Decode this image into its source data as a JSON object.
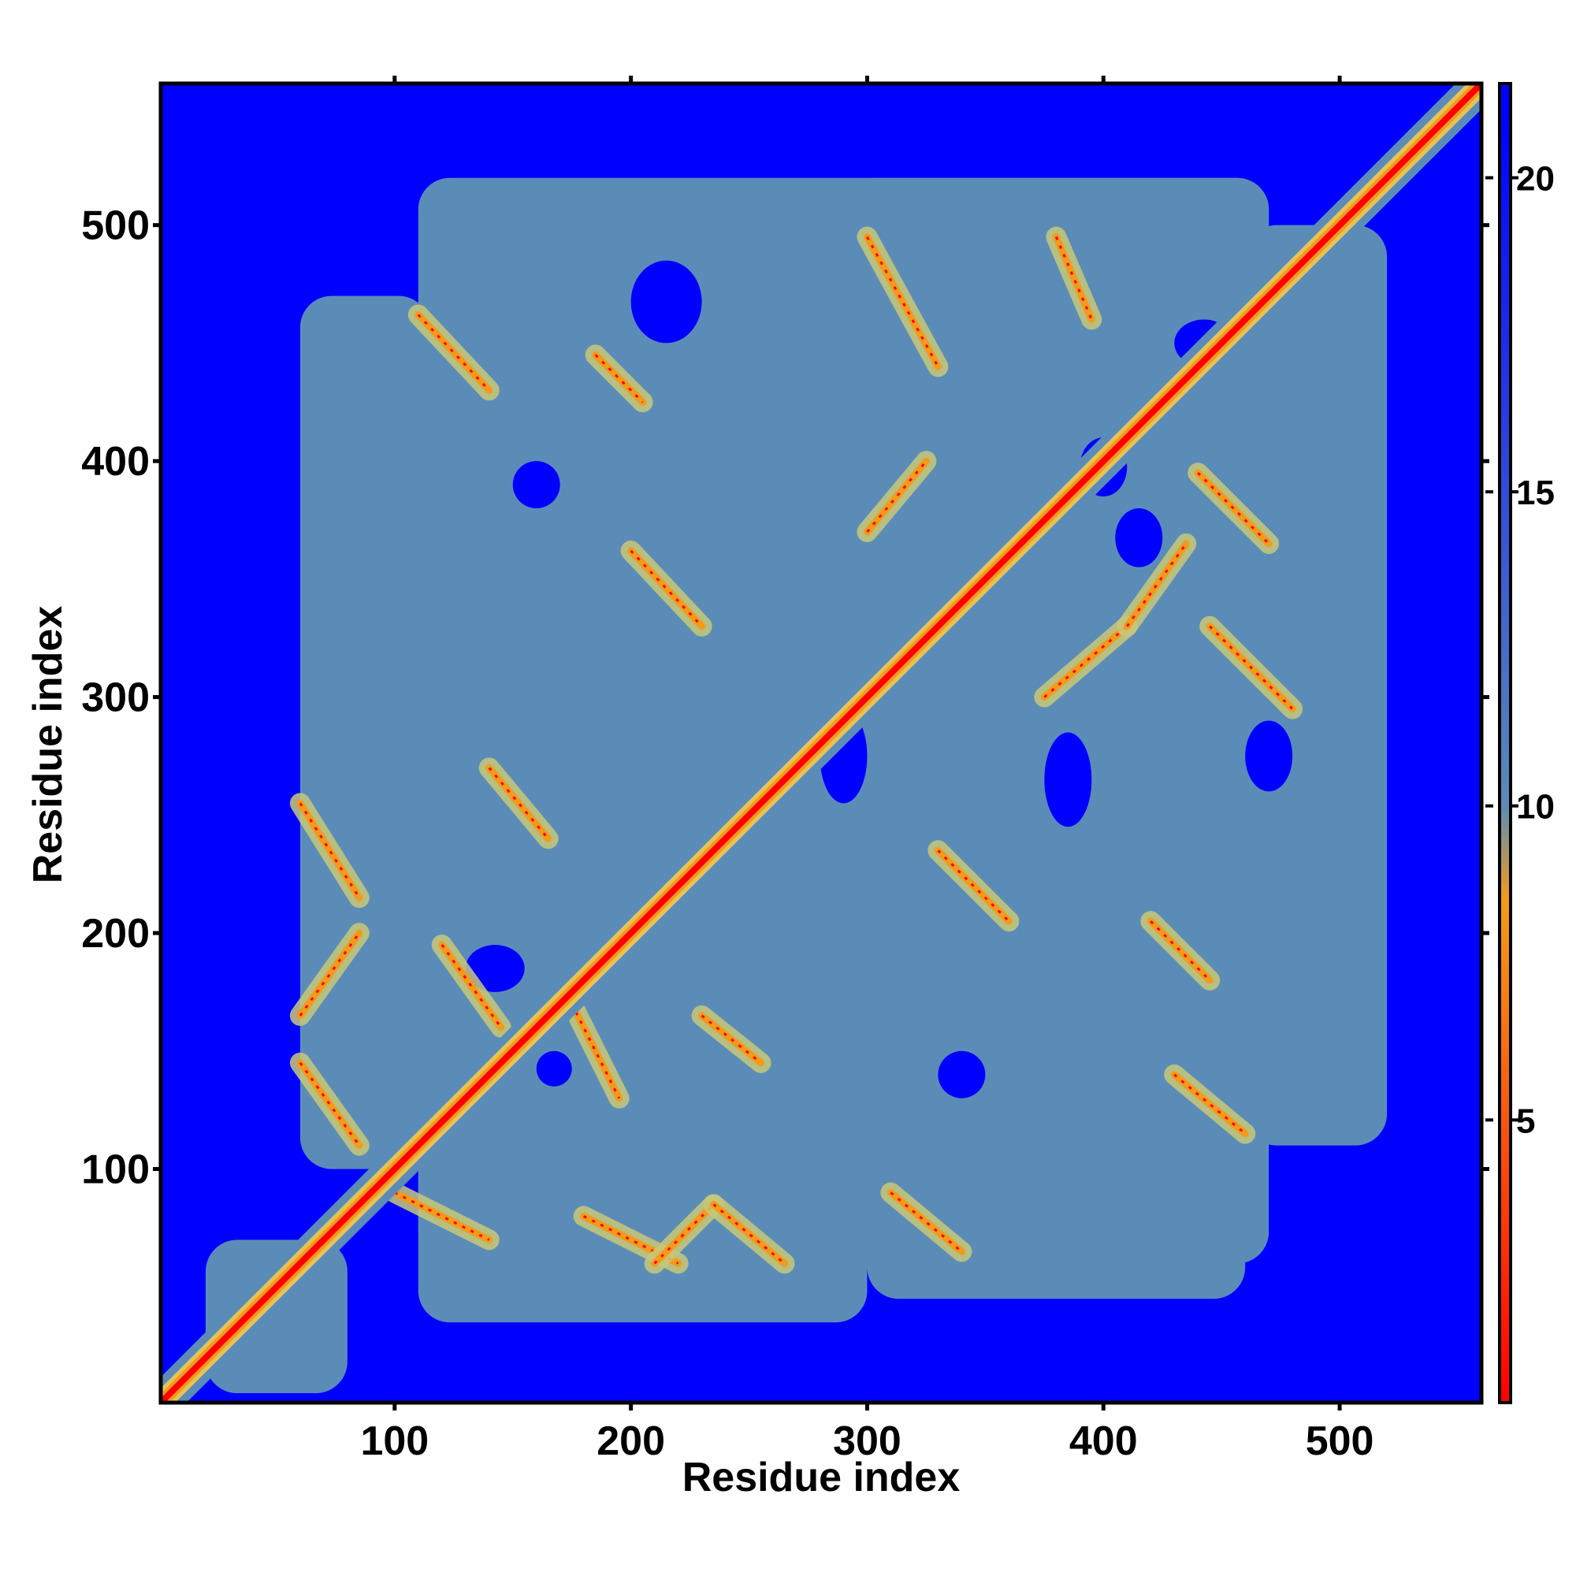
{
  "chart_data": {
    "type": "heatmap",
    "title": "",
    "xlabel": "Residue index",
    "ylabel": "Residue index",
    "xlim": [
      1,
      560
    ],
    "ylim": [
      1,
      560
    ],
    "x_ticks": [
      100,
      200,
      300,
      400,
      500
    ],
    "y_ticks": [
      100,
      200,
      300,
      400,
      500
    ],
    "colorbar": {
      "range": [
        0.5,
        21.5
      ],
      "ticks": [
        5,
        10,
        15,
        20
      ],
      "colors": [
        "#ff0000",
        "#f29b1b",
        "#5b8cb8",
        "#0000ff"
      ],
      "stops": [
        0.5,
        8.5,
        10,
        21
      ]
    },
    "background_color": "#0000ff",
    "contact_color": "#5b8cb8",
    "diagonal_color": "#ff0000",
    "diagonal_band": {
      "from": 1,
      "to": 560
    },
    "contact_bands": [
      {
        "type": "antiparallel",
        "i": [
          110,
          140
        ],
        "j": [
          430,
          462
        ]
      },
      {
        "type": "antiparallel",
        "i": [
          185,
          205
        ],
        "j": [
          425,
          445
        ]
      },
      {
        "type": "antiparallel",
        "i": [
          200,
          230
        ],
        "j": [
          330,
          362
        ]
      },
      {
        "type": "antiparallel",
        "i": [
          300,
          330
        ],
        "j": [
          440,
          495
        ]
      },
      {
        "type": "parallel",
        "i": [
          300,
          325
        ],
        "j": [
          370,
          400
        ]
      },
      {
        "type": "antiparallel",
        "i": [
          380,
          395
        ],
        "j": [
          460,
          495
        ]
      },
      {
        "type": "antiparallel",
        "i": [
          440,
          470
        ],
        "j": [
          365,
          395
        ]
      },
      {
        "type": "parallel",
        "i": [
          375,
          410
        ],
        "j": [
          300,
          330
        ]
      },
      {
        "type": "parallel",
        "i": [
          410,
          435
        ],
        "j": [
          330,
          365
        ]
      },
      {
        "type": "antiparallel",
        "i": [
          445,
          480
        ],
        "j": [
          295,
          330
        ]
      },
      {
        "type": "antiparallel",
        "i": [
          60,
          85
        ],
        "j": [
          215,
          255
        ]
      },
      {
        "type": "parallel",
        "i": [
          60,
          85
        ],
        "j": [
          165,
          200
        ]
      },
      {
        "type": "antiparallel",
        "i": [
          60,
          85
        ],
        "j": [
          110,
          145
        ]
      },
      {
        "type": "antiparallel",
        "i": [
          140,
          165
        ],
        "j": [
          240,
          270
        ]
      },
      {
        "type": "antiparallel",
        "i": [
          120,
          145
        ],
        "j": [
          160,
          195
        ]
      },
      {
        "type": "antiparallel",
        "i": [
          175,
          195
        ],
        "j": [
          130,
          170
        ]
      },
      {
        "type": "antiparallel",
        "i": [
          230,
          255
        ],
        "j": [
          145,
          165
        ]
      },
      {
        "type": "antiparallel",
        "i": [
          330,
          360
        ],
        "j": [
          205,
          235
        ]
      },
      {
        "type": "antiparallel",
        "i": [
          420,
          445
        ],
        "j": [
          180,
          205
        ]
      },
      {
        "type": "antiparallel",
        "i": [
          430,
          460
        ],
        "j": [
          115,
          140
        ]
      },
      {
        "type": "antiparallel",
        "i": [
          100,
          140
        ],
        "j": [
          70,
          90
        ]
      },
      {
        "type": "antiparallel",
        "i": [
          180,
          220
        ],
        "j": [
          60,
          80
        ]
      },
      {
        "type": "parallel",
        "i": [
          210,
          235
        ],
        "j": [
          60,
          85
        ]
      },
      {
        "type": "antiparallel",
        "i": [
          235,
          265
        ],
        "j": [
          60,
          85
        ]
      },
      {
        "type": "antiparallel",
        "i": [
          310,
          340
        ],
        "j": [
          65,
          90
        ]
      }
    ],
    "contact_regions": [
      {
        "x": [
          60,
          115
        ],
        "y": [
          100,
          470
        ]
      },
      {
        "x": [
          110,
          470
        ],
        "y": [
          60,
          520
        ]
      },
      {
        "x": [
          460,
          520
        ],
        "y": [
          110,
          500
        ]
      },
      {
        "x": [
          110,
          300
        ],
        "y": [
          35,
          110
        ]
      },
      {
        "x": [
          300,
          460
        ],
        "y": [
          45,
          110
        ]
      },
      {
        "x": [
          290,
          470
        ],
        "y": [
          470,
          520
        ]
      },
      {
        "x": [
          20,
          80
        ],
        "y": [
          5,
          70
        ]
      }
    ],
    "holes": [
      {
        "x": [
          390,
          410
        ],
        "y": [
          385,
          410
        ]
      },
      {
        "x": [
          405,
          425
        ],
        "y": [
          355,
          380
        ]
      },
      {
        "x": [
          280,
          300
        ],
        "y": [
          255,
          295
        ]
      },
      {
        "x": [
          130,
          155
        ],
        "y": [
          175,
          195
        ]
      },
      {
        "x": [
          160,
          175
        ],
        "y": [
          135,
          150
        ]
      },
      {
        "x": [
          330,
          350
        ],
        "y": [
          130,
          150
        ]
      },
      {
        "x": [
          430,
          455
        ],
        "y": [
          440,
          460
        ]
      },
      {
        "x": [
          375,
          395
        ],
        "y": [
          245,
          285
        ]
      },
      {
        "x": [
          460,
          480
        ],
        "y": [
          260,
          290
        ]
      },
      {
        "x": [
          200,
          230
        ],
        "y": [
          450,
          485
        ]
      },
      {
        "x": [
          150,
          170
        ],
        "y": [
          380,
          400
        ]
      }
    ]
  }
}
